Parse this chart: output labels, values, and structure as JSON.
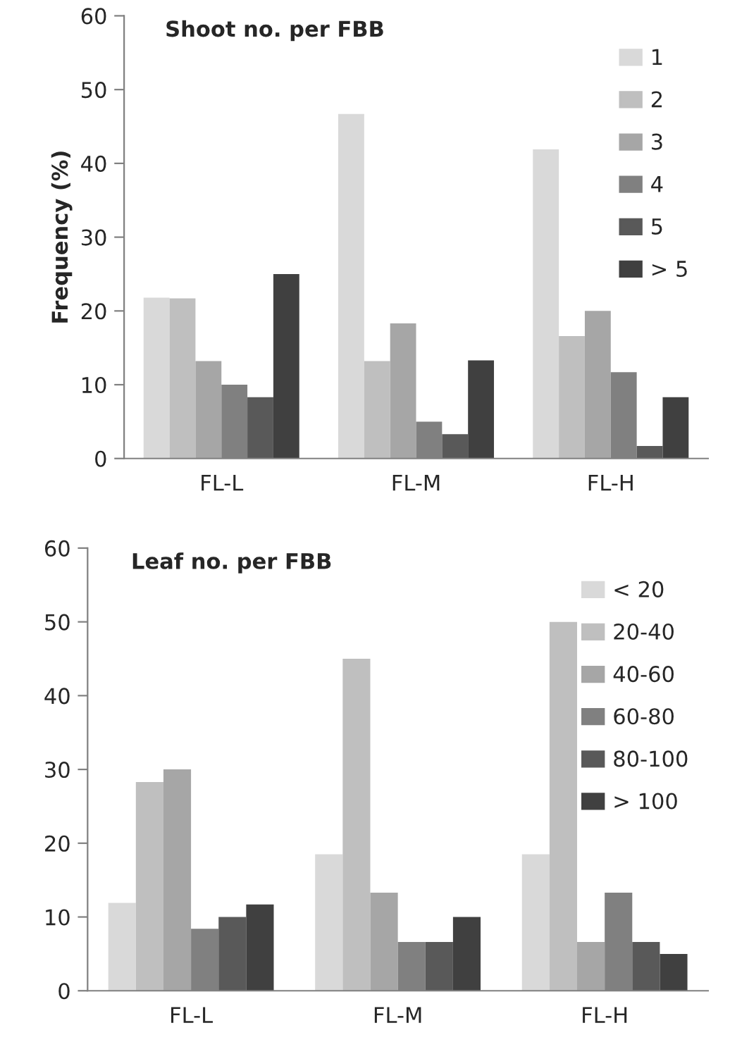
{
  "chart_data": [
    {
      "type": "bar",
      "title": "Shoot no. per FBB",
      "ylabel": "Frequency (%)",
      "categories": [
        "FL-L",
        "FL-M",
        "FL-H"
      ],
      "ylim": [
        0,
        60
      ],
      "yticks": [
        0,
        10,
        20,
        30,
        40,
        50,
        60
      ],
      "legend": "top right",
      "grid": false,
      "series": [
        {
          "name": "1",
          "color": "#d9d9d9",
          "values": [
            21.8,
            46.7,
            41.9
          ]
        },
        {
          "name": "2",
          "color": "#bfbfbf",
          "values": [
            21.7,
            13.2,
            16.6
          ]
        },
        {
          "name": "3",
          "color": "#a6a6a6",
          "values": [
            13.2,
            18.3,
            20.0
          ]
        },
        {
          "name": "4",
          "color": "#808080",
          "values": [
            10.0,
            5.0,
            11.7
          ]
        },
        {
          "name": "5",
          "color": "#595959",
          "values": [
            8.3,
            3.3,
            1.7
          ]
        },
        {
          "name": "> 5",
          "color": "#404040",
          "values": [
            25.0,
            13.3,
            8.3
          ]
        }
      ]
    },
    {
      "type": "bar",
      "title": "Leaf no. per FBB",
      "categories": [
        "FL-L",
        "FL-M",
        "FL-H"
      ],
      "ylim": [
        0,
        60
      ],
      "yticks": [
        0,
        10,
        20,
        30,
        40,
        50,
        60
      ],
      "legend": "top right",
      "grid": false,
      "series": [
        {
          "name": "< 20",
          "color": "#d9d9d9",
          "values": [
            11.9,
            18.5,
            18.5
          ]
        },
        {
          "name": "20-40",
          "color": "#bfbfbf",
          "values": [
            28.3,
            45.0,
            50.0
          ]
        },
        {
          "name": "40-60",
          "color": "#a6a6a6",
          "values": [
            30.0,
            13.3,
            6.6
          ]
        },
        {
          "name": "60-80",
          "color": "#808080",
          "values": [
            8.4,
            6.6,
            13.3
          ]
        },
        {
          "name": "80-100",
          "color": "#595959",
          "values": [
            10.0,
            6.6,
            6.6
          ]
        },
        {
          "name": "> 100",
          "color": "#404040",
          "values": [
            11.7,
            10.0,
            5.0
          ]
        }
      ]
    }
  ]
}
